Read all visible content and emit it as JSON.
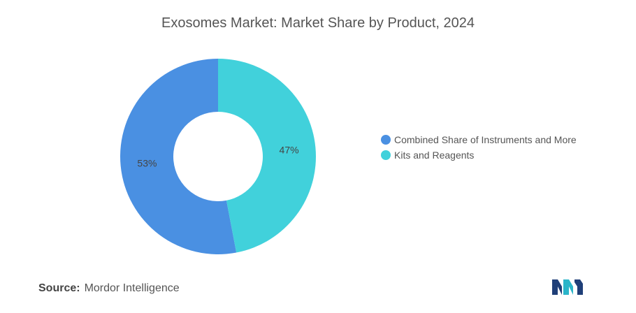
{
  "chart_data": {
    "type": "pie",
    "donut": true,
    "title": "Exosomes Market: Market Share by Product, 2024",
    "categories": [
      "Combined Share of Instruments and More",
      "Kits and Reagents"
    ],
    "values": [
      53,
      47
    ],
    "data_labels": [
      "53%",
      "47%"
    ],
    "colors": [
      "#4a90e2",
      "#41d1db"
    ],
    "legend_position": "right"
  },
  "source": {
    "label": "Source:",
    "text": "Mordor Intelligence"
  },
  "logo": {
    "icon": "mordor-intelligence-logo-icon",
    "colors": [
      "#1f3f78",
      "#2bb5c9"
    ]
  }
}
